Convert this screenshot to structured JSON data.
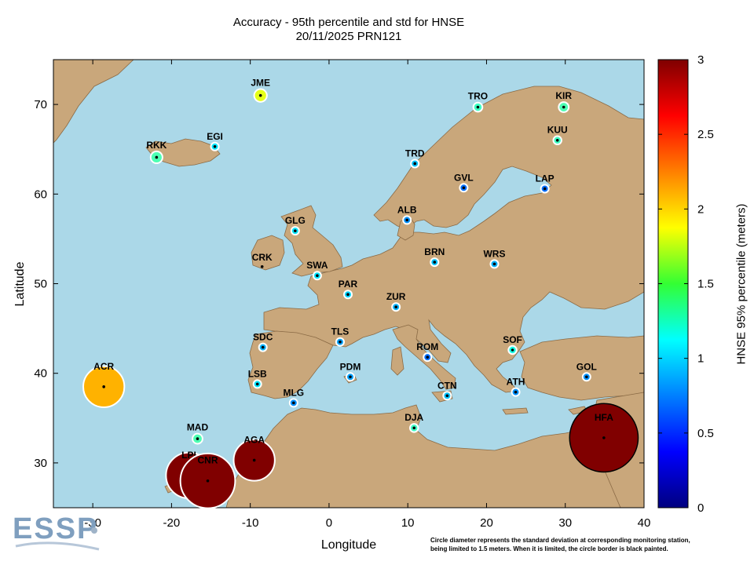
{
  "title_line1": "Accuracy - 95th percentile and std for HNSE",
  "title_line2": "20/11/2025 PRN121",
  "xlabel": "Longitude",
  "ylabel": "Latitude",
  "colorbar_label": "HNSE 95% percentile (meters)",
  "footnote_line1": "Circle diameter represents the standard deviation at corresponding monitoring station,",
  "footnote_line2": "being limited to 1.5 meters. When it is limited, the circle border is black painted.",
  "logo_text": "ESSP",
  "colors": {
    "sea": "#abd8e8",
    "land": "#c9a77b",
    "border": "#8a6a45"
  },
  "chart_data": {
    "type": "scatter",
    "title": "Accuracy - 95th percentile and std for HNSE",
    "subtitle": "20/11/2025 PRN121",
    "xlabel": "Longitude",
    "ylabel": "Latitude",
    "xlim": [
      -35,
      40
    ],
    "ylim": [
      25,
      75
    ],
    "xticks": [
      -30,
      -20,
      -10,
      0,
      10,
      20,
      30,
      40
    ],
    "yticks": [
      30,
      40,
      50,
      60,
      70
    ],
    "colorbar": {
      "label": "HNSE 95% percentile (meters)",
      "range": [
        0,
        3
      ],
      "ticks": [
        0,
        0.5,
        1,
        1.5,
        2,
        2.5,
        3
      ],
      "colormap": "jet"
    },
    "stations": [
      {
        "name": "JME",
        "lon": -8.7,
        "lat": 71.0,
        "hnse95": 1.8,
        "std": 0.28
      },
      {
        "name": "TRO",
        "lon": 18.9,
        "lat": 69.7,
        "hnse95": 1.3,
        "std": 0.2
      },
      {
        "name": "KIR",
        "lon": 29.8,
        "lat": 69.7,
        "hnse95": 1.35,
        "std": 0.22
      },
      {
        "name": "KUU",
        "lon": 29.0,
        "lat": 66.0,
        "hnse95": 1.3,
        "std": 0.18
      },
      {
        "name": "EGI",
        "lon": -14.5,
        "lat": 65.3,
        "hnse95": 1.05,
        "std": 0.15
      },
      {
        "name": "RKK",
        "lon": -21.9,
        "lat": 64.1,
        "hnse95": 1.35,
        "std": 0.26
      },
      {
        "name": "TRD",
        "lon": 10.9,
        "lat": 63.4,
        "hnse95": 0.95,
        "std": 0.12
      },
      {
        "name": "GVL",
        "lon": 17.1,
        "lat": 60.7,
        "hnse95": 0.7,
        "std": 0.1
      },
      {
        "name": "LAP",
        "lon": 27.4,
        "lat": 60.6,
        "hnse95": 0.7,
        "std": 0.1
      },
      {
        "name": "ALB",
        "lon": 9.9,
        "lat": 57.1,
        "hnse95": 0.8,
        "std": 0.1
      },
      {
        "name": "GLG",
        "lon": -4.3,
        "lat": 55.9,
        "hnse95": 1.05,
        "std": 0.13
      },
      {
        "name": "CRK",
        "lon": -8.5,
        "lat": 51.9,
        "hnse95": 0.0,
        "std": 0.0
      },
      {
        "name": "BRN",
        "lon": 13.4,
        "lat": 52.4,
        "hnse95": 0.95,
        "std": 0.12
      },
      {
        "name": "WRS",
        "lon": 21.0,
        "lat": 52.2,
        "hnse95": 0.9,
        "std": 0.12
      },
      {
        "name": "SWA",
        "lon": -1.5,
        "lat": 50.9,
        "hnse95": 1.05,
        "std": 0.14
      },
      {
        "name": "PAR",
        "lon": 2.4,
        "lat": 48.8,
        "hnse95": 1.0,
        "std": 0.14
      },
      {
        "name": "ZUR",
        "lon": 8.5,
        "lat": 47.4,
        "hnse95": 0.9,
        "std": 0.12
      },
      {
        "name": "TLS",
        "lon": 1.4,
        "lat": 43.5,
        "hnse95": 0.85,
        "std": 0.12
      },
      {
        "name": "SDC",
        "lon": -8.4,
        "lat": 42.9,
        "hnse95": 0.9,
        "std": 0.1
      },
      {
        "name": "ROM",
        "lon": 12.5,
        "lat": 41.8,
        "hnse95": 0.7,
        "std": 0.1
      },
      {
        "name": "SOF",
        "lon": 23.3,
        "lat": 42.6,
        "hnse95": 1.2,
        "std": 0.18
      },
      {
        "name": "GOL",
        "lon": 32.7,
        "lat": 39.6,
        "hnse95": 0.8,
        "std": 0.1
      },
      {
        "name": "ACR",
        "lon": -28.6,
        "lat": 38.5,
        "hnse95": 2.1,
        "std": 0.9
      },
      {
        "name": "LSB",
        "lon": -9.1,
        "lat": 38.8,
        "hnse95": 1.05,
        "std": 0.14
      },
      {
        "name": "PDM",
        "lon": 2.7,
        "lat": 39.6,
        "hnse95": 0.85,
        "std": 0.1
      },
      {
        "name": "ATH",
        "lon": 23.7,
        "lat": 37.9,
        "hnse95": 0.8,
        "std": 0.1
      },
      {
        "name": "MLG",
        "lon": -4.5,
        "lat": 36.7,
        "hnse95": 0.8,
        "std": 0.1
      },
      {
        "name": "CTN",
        "lon": 15.0,
        "lat": 37.5,
        "hnse95": 0.95,
        "std": 0.1
      },
      {
        "name": "DJA",
        "lon": 10.8,
        "lat": 33.9,
        "hnse95": 1.3,
        "std": 0.18
      },
      {
        "name": "MAD",
        "lon": -16.7,
        "lat": 32.7,
        "hnse95": 1.35,
        "std": 0.22
      },
      {
        "name": "HFA",
        "lon": 34.9,
        "lat": 32.8,
        "hnse95": 3.0,
        "std": 1.5,
        "limited": true
      },
      {
        "name": "AGA",
        "lon": -9.5,
        "lat": 30.3,
        "hnse95": 3.0,
        "std": 0.9
      },
      {
        "name": "LPI",
        "lon": -17.8,
        "lat": 28.6,
        "hnse95": 3.0,
        "std": 1.0
      },
      {
        "name": "CNR",
        "lon": -15.4,
        "lat": 28.0,
        "hnse95": 3.0,
        "std": 1.2
      }
    ]
  }
}
